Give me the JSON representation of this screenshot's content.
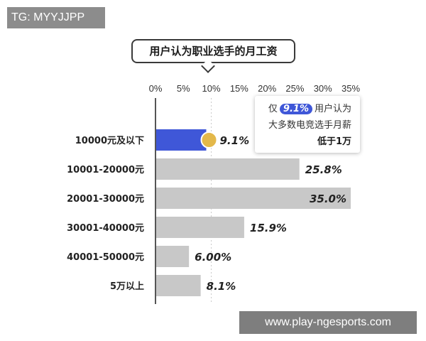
{
  "watermarks": {
    "top": "TG: MYYJJPP",
    "bottom": "www.play-ngesports.com"
  },
  "callout": {
    "prefix": "仅",
    "highlight": "9.1%",
    "suffix": "用户认为",
    "line2": "大多数电竞选手月薪",
    "line3": "低于1万"
  },
  "colors": {
    "highlight_bar": "#3f57d8",
    "bar": "#c8c8c8",
    "coin": "#e3b84a"
  },
  "chart_data": {
    "type": "bar",
    "orientation": "horizontal",
    "title": "用户认为职业选手的月工资",
    "categories": [
      "10000元及以下",
      "10001-20000元",
      "20001-30000元",
      "30001-40000元",
      "40001-50000元",
      "5万以上"
    ],
    "values": [
      9.1,
      25.8,
      35.0,
      15.9,
      6.0,
      8.1
    ],
    "value_labels": [
      "9.1%",
      "25.8%",
      "35.0%",
      "15.9%",
      "6.00%",
      "8.1%"
    ],
    "xlim": [
      0,
      35
    ],
    "xticks": [
      "0%",
      "5%",
      "10%",
      "15%",
      "20%",
      "25%",
      "30%",
      "35%"
    ],
    "highlight_index": 0,
    "grid": false,
    "legend": "none"
  }
}
